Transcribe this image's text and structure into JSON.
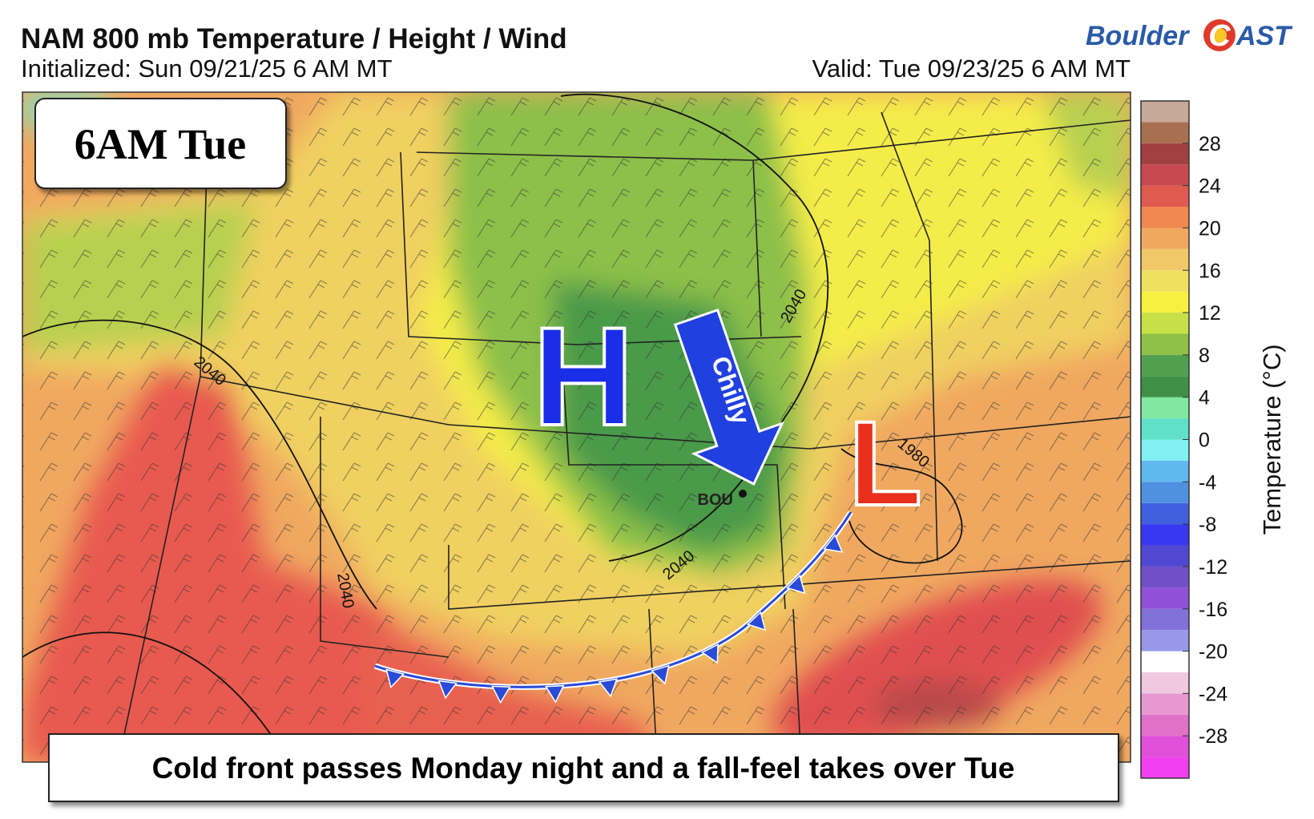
{
  "header": {
    "title": "NAM 800 mb Temperature / Height / Wind",
    "initialized": "Initialized: Sun 09/21/25 6 AM MT",
    "valid": "Valid: Tue 09/23/25 6 AM MT"
  },
  "logo": {
    "name": "Boulder",
    "mark": "C",
    "suffix": "AST"
  },
  "badge": "6AM Tue",
  "caption": "Cold front passes Monday night and a fall-feel takes over Tue",
  "map": {
    "high": "H",
    "low": "L",
    "arrow_label": "Chilly",
    "station": "BOU",
    "contour_labels": [
      "2040",
      "2040",
      "2040",
      "2040",
      "1980"
    ]
  },
  "colorbar": {
    "label": "Temperature (°C)",
    "lim": [
      -32,
      32
    ],
    "ticks": [
      -28,
      -24,
      -20,
      -16,
      -12,
      -8,
      -4,
      0,
      4,
      8,
      12,
      16,
      20,
      24,
      28
    ],
    "colors": [
      "#f040f0",
      "#e050d8",
      "#e070c8",
      "#e898d0",
      "#f0c8e0",
      "#ffffff",
      "#9898e8",
      "#8070d8",
      "#9050d8",
      "#7050c8",
      "#5048d0",
      "#3838f0",
      "#4060e0",
      "#5090e0",
      "#60b8f0",
      "#80f0f0",
      "#60e0c8",
      "#80e8a0",
      "#409048",
      "#50a050",
      "#90c048",
      "#c8e048",
      "#f8f040",
      "#f0e060",
      "#f0c868",
      "#f0a860",
      "#f08850",
      "#e05a50",
      "#c84850",
      "#a04040",
      "#a87050",
      "#c8a898"
    ]
  }
}
